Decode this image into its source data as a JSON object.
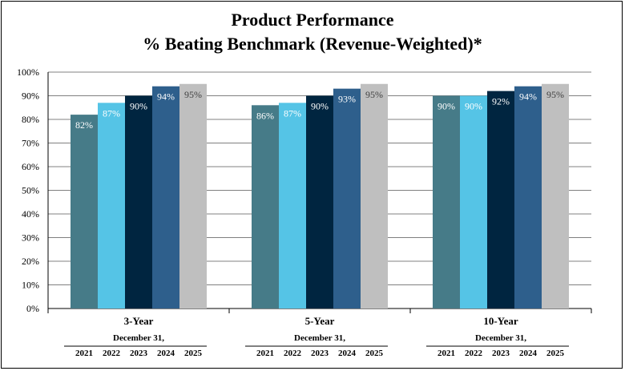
{
  "chart_data": {
    "type": "bar",
    "title": "Product Performance",
    "subtitle": "% Beating Benchmark (Revenue-Weighted)*",
    "categories": [
      "3-Year",
      "5-Year",
      "10-Year"
    ],
    "category_sublabel": "December 31,",
    "series": [
      {
        "name": "2021",
        "color": "#467b88",
        "values": [
          82,
          86,
          90
        ]
      },
      {
        "name": "2022",
        "color": "#55c4e6",
        "values": [
          87,
          87,
          90
        ]
      },
      {
        "name": "2023",
        "color": "#002540",
        "values": [
          90,
          90,
          92
        ]
      },
      {
        "name": "2024",
        "color": "#2e5f8c",
        "values": [
          94,
          93,
          94
        ]
      },
      {
        "name": "2025",
        "color": "#bfbfbf",
        "values": [
          95,
          95,
          95
        ]
      }
    ],
    "data_labels": [
      [
        "82%",
        "87%",
        "90%",
        "94%",
        "95%"
      ],
      [
        "86%",
        "87%",
        "90%",
        "93%",
        "95%"
      ],
      [
        "90%",
        "90%",
        "92%",
        "94%",
        "95%"
      ]
    ],
    "label_colors": [
      "#ffffff",
      "#ffffff",
      "#ffffff",
      "#ffffff",
      "#404040"
    ],
    "ylim": [
      0,
      100
    ],
    "yticks": [
      "0%",
      "10%",
      "20%",
      "30%",
      "40%",
      "50%",
      "60%",
      "70%",
      "80%",
      "90%",
      "100%"
    ],
    "grid": true,
    "legend": "none"
  }
}
